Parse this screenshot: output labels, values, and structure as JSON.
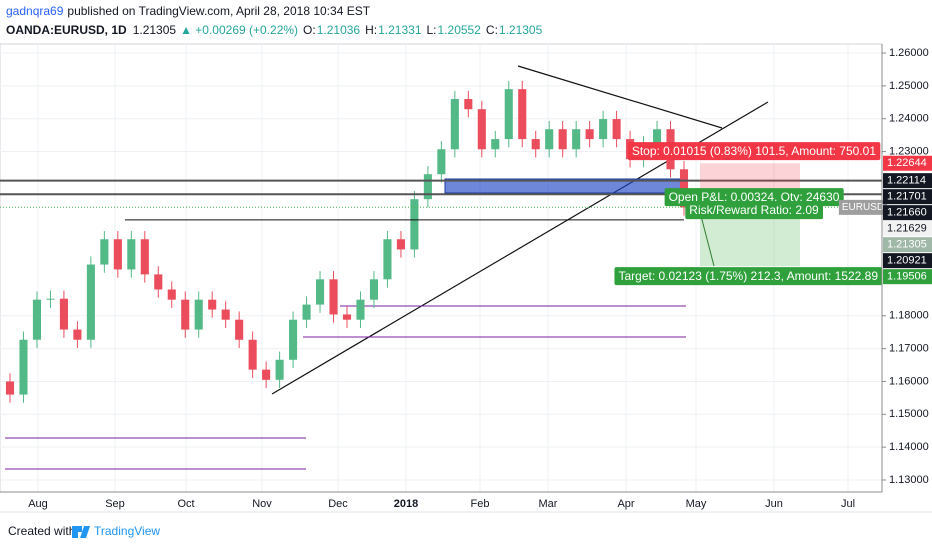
{
  "chart_data": {
    "type": "candlestick",
    "author": "gadnqra69",
    "published": "published on TradingView.com, April 28, 2018 10:34 EST",
    "symbol": "OANDA:EURUSD, 1D",
    "last": "1.21305",
    "change": "▲ +0.00269 (+0.22%)",
    "ohlc": [
      {
        "key": "O:",
        "value": "1.21036"
      },
      {
        "key": "H:",
        "value": "1.21331"
      },
      {
        "key": "L:",
        "value": "1.20552"
      },
      {
        "key": "C:",
        "value": "1.21305"
      }
    ],
    "months": [
      "Aug",
      "Sep",
      "Oct",
      "Nov",
      "Dec",
      "2018",
      "Feb",
      "Mar",
      "Apr",
      "May",
      "Jun",
      "Jul"
    ],
    "ylim": [
      1.12634,
      1.26275
    ],
    "yticks": [
      {
        "value": 1.26,
        "label": "1.26000"
      },
      {
        "value": 1.25,
        "label": "1.25000"
      },
      {
        "value": 1.24,
        "label": "1.24000"
      },
      {
        "value": 1.23,
        "label": "1.23000"
      },
      {
        "value": 1.18,
        "label": "1.18000"
      },
      {
        "value": 1.17,
        "label": "1.17000"
      },
      {
        "value": 1.16,
        "label": "1.16000"
      },
      {
        "value": 1.15,
        "label": "1.15000"
      },
      {
        "value": 1.14,
        "label": "1.14000"
      },
      {
        "value": 1.13,
        "label": "1.13000"
      }
    ],
    "grid": true,
    "series": [
      {
        "name": "EURUSD",
        "up_color": "#53b987",
        "down_color": "#eb4d5c",
        "open": [
          1.16,
          1.156,
          1.1727,
          1.1849,
          1.1852,
          1.1758,
          1.1727,
          1.1956,
          1.2033,
          1.1941,
          1.2033,
          1.1926,
          1.188,
          1.1849,
          1.1758,
          1.1849,
          1.1819,
          1.1788,
          1.1727,
          1.1636,
          1.1605,
          1.1666,
          1.1788,
          1.1834,
          1.1911,
          1.1804,
          1.1788,
          1.1849,
          1.1911,
          1.2033,
          1.2002,
          1.2155,
          1.2231,
          1.2307,
          1.246,
          1.2429,
          1.2307,
          1.2338,
          1.249,
          1.2338,
          1.2307,
          1.2368,
          1.2307,
          1.2368,
          1.2338,
          1.2399,
          1.2338,
          1.2277,
          1.2322,
          1.2368,
          1.2246
        ],
        "high": [
          1.1625,
          1.1752,
          1.1874,
          1.1877,
          1.1877,
          1.1783,
          1.1981,
          1.2058,
          1.2058,
          1.2058,
          1.2058,
          1.1951,
          1.1905,
          1.1874,
          1.1874,
          1.1874,
          1.1844,
          1.1813,
          1.1752,
          1.1661,
          1.1691,
          1.1813,
          1.1859,
          1.1936,
          1.1936,
          1.1829,
          1.1874,
          1.1936,
          1.2058,
          1.2058,
          1.218,
          1.2256,
          1.2332,
          1.2485,
          1.2485,
          1.2454,
          1.2363,
          1.2515,
          1.2515,
          1.2363,
          1.2393,
          1.2393,
          1.2393,
          1.2393,
          1.2424,
          1.2424,
          1.2363,
          1.2347,
          1.2393,
          1.2393,
          1.2271
        ],
        "low": [
          1.1535,
          1.1535,
          1.1702,
          1.1824,
          1.1733,
          1.1702,
          1.1702,
          1.1931,
          1.1916,
          1.1916,
          1.1901,
          1.1855,
          1.1824,
          1.1733,
          1.1733,
          1.1794,
          1.1763,
          1.1702,
          1.1611,
          1.158,
          1.158,
          1.1641,
          1.1763,
          1.1809,
          1.1779,
          1.1763,
          1.1763,
          1.1824,
          1.1886,
          1.1977,
          1.1977,
          1.213,
          1.2206,
          1.2282,
          1.2404,
          1.2282,
          1.2282,
          1.2313,
          1.2313,
          1.2282,
          1.2282,
          1.2282,
          1.2282,
          1.2313,
          1.2313,
          1.2313,
          1.2252,
          1.2252,
          1.2297,
          1.2221,
          1.2105
        ],
        "close": [
          1.156,
          1.1727,
          1.1849,
          1.1852,
          1.1758,
          1.1727,
          1.1956,
          1.2033,
          1.1941,
          1.2033,
          1.1926,
          1.188,
          1.1849,
          1.1758,
          1.1849,
          1.1819,
          1.1788,
          1.1727,
          1.1636,
          1.1605,
          1.1666,
          1.1788,
          1.1834,
          1.1911,
          1.1804,
          1.1788,
          1.1849,
          1.1911,
          1.2033,
          1.2002,
          1.2155,
          1.2231,
          1.2307,
          1.246,
          1.2429,
          1.2307,
          1.2338,
          1.249,
          1.2338,
          1.2307,
          1.2368,
          1.2307,
          1.2368,
          1.2338,
          1.2399,
          1.2338,
          1.2277,
          1.2322,
          1.2368,
          1.2246,
          1.213
        ]
      }
    ],
    "price_labels": [
      {
        "value": 1.22644,
        "label": "1.22644",
        "color": "#f23645"
      },
      {
        "value": 1.22114,
        "label": "1.22114",
        "color": "#131722"
      },
      {
        "value": 1.21701,
        "label": "1.21701",
        "color": "#131722"
      },
      {
        "value": 1.2166,
        "label": "1.21660",
        "color": "#131722"
      },
      {
        "value": 1.21629,
        "label": "1.21629",
        "color": "#f2f2f2"
      },
      {
        "value": 1.21305,
        "label": "1.21305",
        "color": "#9fb8a8"
      },
      {
        "value": 1.20921,
        "label": "1.20921",
        "color": "#131722"
      },
      {
        "value": 1.19506,
        "label": "1.19506",
        "color": "#2fa03c"
      }
    ],
    "stop_label": "Stop: 0.01015 (0.83%) 101.5, Amount: 750.01",
    "pnl_label": "Open P&L: 0.00324, Qty: 24630",
    "rr_label": "Risk/Reward Ratio: 2.09",
    "target_label": "Target: 0.02123 (1.75%) 212.3, Amount: 1522.89",
    "footer": "Created with",
    "brand": "TradingView"
  }
}
